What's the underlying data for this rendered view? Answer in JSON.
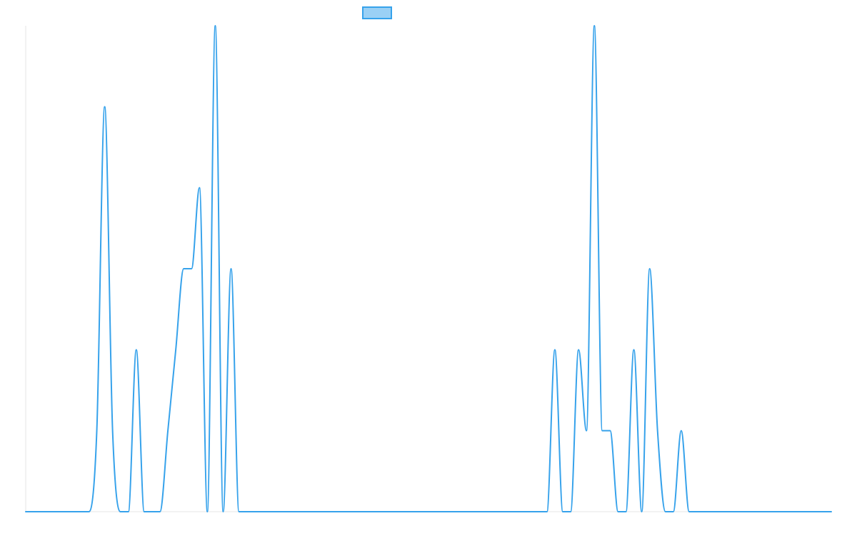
{
  "chart_data": {
    "type": "line",
    "title": "",
    "xlabel": "",
    "ylabel": "",
    "ylim": [
      0,
      6
    ],
    "grid": false,
    "legend": {
      "position": "top-center",
      "entries": [
        ""
      ]
    },
    "x": [
      0,
      1,
      2,
      3,
      4,
      5,
      6,
      7,
      8,
      9,
      10,
      11,
      12,
      13,
      14,
      15,
      16,
      17,
      18,
      19,
      20,
      21,
      22,
      23,
      24,
      25,
      26,
      27,
      28,
      29,
      30,
      31,
      32,
      33,
      34,
      35,
      36,
      37,
      38,
      39,
      40,
      41,
      42,
      43,
      44,
      45,
      46,
      47,
      48,
      49,
      50,
      51,
      52,
      53,
      54,
      55,
      56,
      57,
      58,
      59,
      60,
      61,
      62,
      63,
      64,
      65,
      66,
      67,
      68,
      69,
      70,
      71,
      72,
      73,
      74,
      75,
      76,
      77,
      78,
      79,
      80,
      81,
      82,
      83,
      84,
      85,
      86,
      87,
      88,
      89,
      90,
      91,
      92,
      93,
      94,
      95,
      96,
      97,
      98,
      99,
      100,
      101,
      102
    ],
    "series": [
      {
        "name": "",
        "color": "#36a2eb",
        "fill": "#9ad0f5",
        "values": [
          0,
          0,
          0,
          0,
          0,
          0,
          0,
          0,
          0,
          1,
          5,
          1,
          0,
          0,
          2,
          0,
          0,
          0,
          1,
          2,
          3,
          3,
          4,
          0,
          6,
          0,
          3,
          0,
          0,
          0,
          0,
          0,
          0,
          0,
          0,
          0,
          0,
          0,
          0,
          0,
          0,
          0,
          0,
          0,
          0,
          0,
          0,
          0,
          0,
          0,
          0,
          0,
          0,
          0,
          0,
          0,
          0,
          0,
          0,
          0,
          0,
          0,
          0,
          0,
          0,
          0,
          0,
          2,
          0,
          0,
          2,
          1,
          6,
          1,
          1,
          0,
          0,
          2,
          0,
          3,
          1,
          0,
          0,
          1,
          0,
          0,
          0,
          0,
          0,
          0,
          0,
          0,
          0,
          0,
          0,
          0,
          0,
          0,
          0,
          0,
          0,
          0,
          0
        ]
      }
    ]
  }
}
